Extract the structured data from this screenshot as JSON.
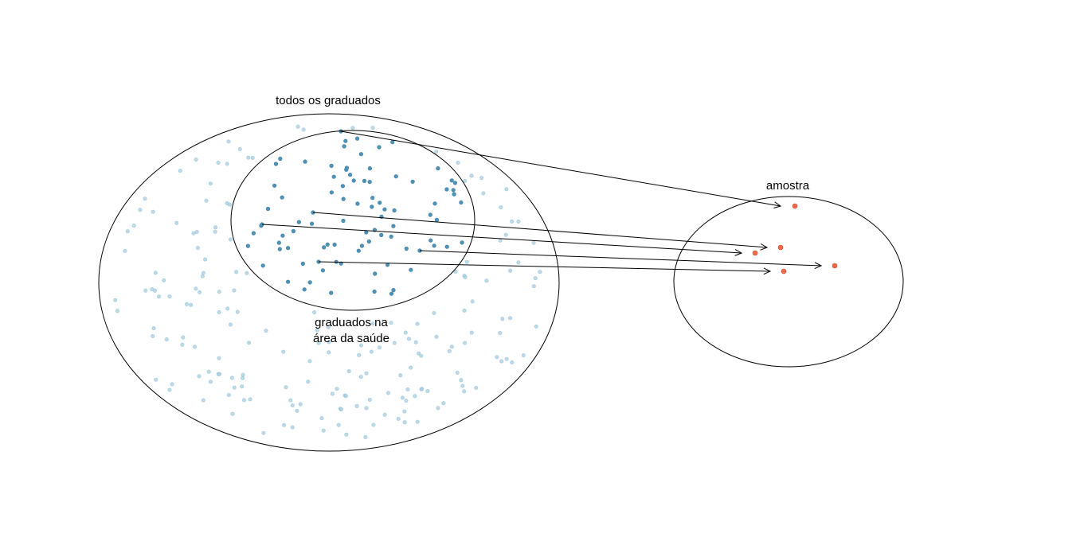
{
  "labels": {
    "population": "todos os graduados",
    "subpopulation_line1": "graduados na",
    "subpopulation_line2": "área da saúde",
    "sample": "amostra"
  },
  "colors": {
    "population_point": "#a6cee3",
    "subpopulation_point": "#4f93b8",
    "sample_point": "#f0694a",
    "outline": "#000000"
  }
}
